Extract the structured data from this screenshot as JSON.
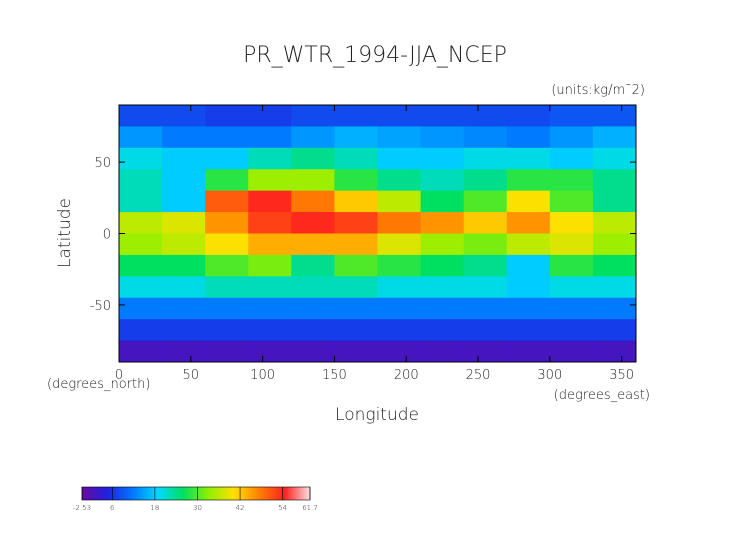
{
  "chart_data": {
    "type": "heatmap",
    "title": "PR_WTR_1994-JJA_NCEP",
    "units_label": "(units:kg/m¯2)",
    "x_label": "Longitude",
    "y_label": "Latitude",
    "x_unit_label": "(degrees_east)",
    "y_unit_label": "(degrees_north)",
    "xlim": [
      0,
      360
    ],
    "ylim": [
      -90,
      90
    ],
    "xticks": [
      0,
      50,
      100,
      150,
      200,
      250,
      300,
      350
    ],
    "yticks": [
      -50,
      0,
      50
    ],
    "x": [
      15,
      45,
      75,
      105,
      135,
      165,
      195,
      225,
      255,
      285,
      315,
      345
    ],
    "y": [
      82.5,
      67.5,
      52.5,
      37.5,
      22.5,
      7.5,
      -7.5,
      -22.5,
      -37.5,
      -52.5,
      -67.5,
      -82.5
    ],
    "values": [
      [
        8,
        8,
        7,
        7,
        8,
        8,
        8,
        8,
        8,
        8,
        9,
        9
      ],
      [
        14,
        12,
        12,
        12,
        14,
        16,
        15,
        14,
        13,
        12,
        14,
        16
      ],
      [
        20,
        18,
        18,
        22,
        24,
        22,
        18,
        18,
        20,
        20,
        18,
        20
      ],
      [
        22,
        18,
        28,
        34,
        34,
        28,
        24,
        22,
        24,
        28,
        28,
        24
      ],
      [
        22,
        18,
        50,
        54,
        48,
        42,
        36,
        26,
        30,
        40,
        30,
        24
      ],
      [
        36,
        38,
        46,
        52,
        54,
        52,
        48,
        46,
        42,
        46,
        40,
        36
      ],
      [
        34,
        36,
        40,
        44,
        44,
        44,
        38,
        34,
        32,
        36,
        38,
        34
      ],
      [
        26,
        26,
        30,
        32,
        24,
        30,
        28,
        26,
        24,
        18,
        28,
        26
      ],
      [
        20,
        20,
        22,
        22,
        22,
        22,
        20,
        20,
        20,
        18,
        20,
        20
      ],
      [
        12,
        12,
        12,
        12,
        12,
        12,
        12,
        12,
        12,
        12,
        12,
        12
      ],
      [
        7,
        7,
        7,
        7,
        7,
        7,
        7,
        7,
        7,
        7,
        7,
        7
      ],
      [
        1,
        1,
        1,
        1,
        1,
        1,
        1,
        1,
        1,
        1,
        1,
        1
      ]
    ],
    "zlim": [
      -2.53,
      61.7
    ],
    "zticks": [
      -2.53,
      6,
      18,
      30,
      42,
      54,
      61.7
    ],
    "colormap": [
      "#6a0aa0",
      "#2020e0",
      "#0078ff",
      "#00d8ff",
      "#00e060",
      "#90f000",
      "#ffe000",
      "#ff8000",
      "#ff2020",
      "#ffe0e0"
    ]
  }
}
